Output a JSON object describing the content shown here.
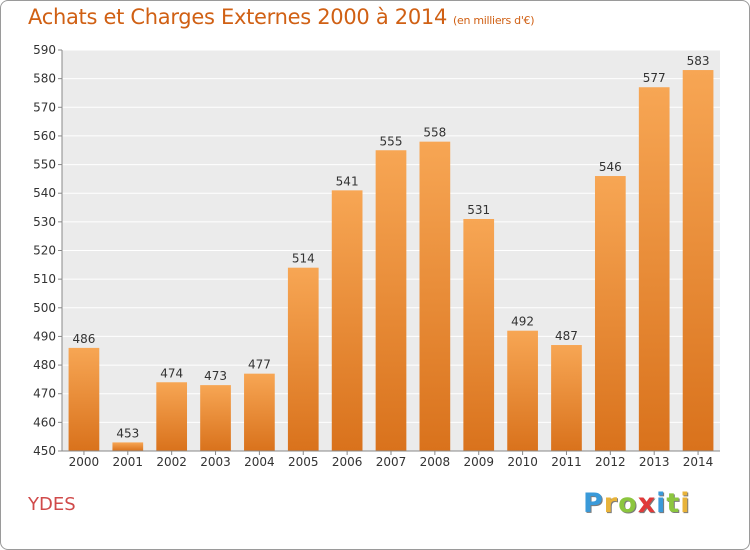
{
  "header": {
    "title": "Achats et Charges Externes 2000 à 2014",
    "subtitle": "(en milliers d'€)"
  },
  "footer": {
    "location": "YDES",
    "brand_letters": [
      "P",
      "r",
      "o",
      "x",
      "i",
      "t",
      "i"
    ],
    "brand_colors": [
      "#3a9ad9",
      "#e8b33a",
      "#8cc63f",
      "#e03a3a",
      "#3a9ad9",
      "#8cc63f",
      "#e8b33a"
    ]
  },
  "chart_data": {
    "type": "bar",
    "categories": [
      "2000",
      "2001",
      "2002",
      "2003",
      "2004",
      "2005",
      "2006",
      "2007",
      "2008",
      "2009",
      "2010",
      "2011",
      "2012",
      "2013",
      "2014"
    ],
    "values": [
      486,
      453,
      474,
      473,
      477,
      514,
      541,
      555,
      558,
      531,
      492,
      487,
      546,
      577,
      583
    ],
    "ylim": [
      450,
      590
    ],
    "yticks": [
      450,
      460,
      470,
      480,
      490,
      500,
      510,
      520,
      530,
      540,
      550,
      560,
      570,
      580,
      590
    ],
    "grid": true,
    "bar_color_top": "#f7a654",
    "bar_color_bottom": "#d9721c",
    "plot_background": "#ebebeb",
    "grid_color": "#ffffff"
  }
}
